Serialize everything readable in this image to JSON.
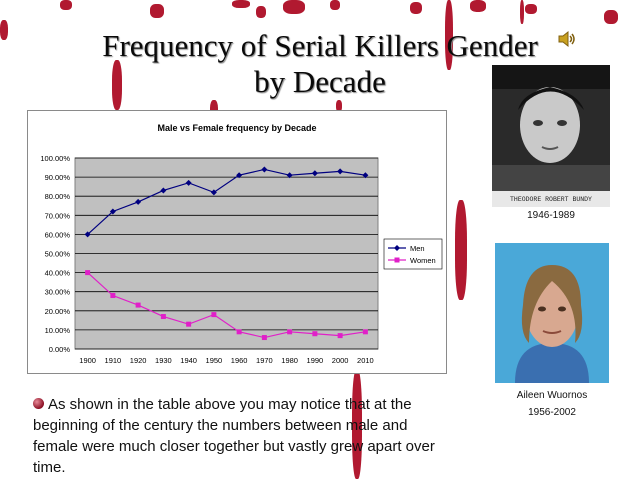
{
  "slide": {
    "title_line1": "Frequency of Serial Killers Gender",
    "title_line2": "by Decade",
    "bullet_text": "As shown in the table above you may notice that at the beginning of the century the numbers between male and female were much closer together but vastly grew apart over time."
  },
  "photos": [
    {
      "name_plate": "THEODORE ROBERT BUNDY",
      "years": "1946-1989"
    },
    {
      "name": "Aileen Wuornos",
      "years": "1956-2002"
    }
  ],
  "icons": {
    "speaker": "speaker-icon",
    "bullet": "bullet-icon"
  },
  "chart_data": {
    "type": "line",
    "title": "Male vs Female frequency by Decade",
    "x": [
      "1900",
      "1910",
      "1920",
      "1930",
      "1940",
      "1950",
      "1960",
      "1970",
      "1980",
      "1990",
      "2000",
      "2010"
    ],
    "yticks": [
      "0.00%",
      "10.00%",
      "20.00%",
      "30.00%",
      "40.00%",
      "50.00%",
      "60.00%",
      "70.00%",
      "80.00%",
      "90.00%",
      "100.00%"
    ],
    "ylim": [
      0,
      100
    ],
    "grid": true,
    "legend": "right",
    "series": [
      {
        "name": "Men",
        "color": "#000080",
        "values": [
          60,
          72,
          77,
          83,
          87,
          82,
          91,
          94,
          91,
          92,
          93,
          91
        ]
      },
      {
        "name": "Women",
        "color": "#e020c8",
        "values": [
          40,
          28,
          23,
          17,
          13,
          18,
          9,
          6,
          9,
          8,
          7,
          9
        ]
      }
    ]
  }
}
